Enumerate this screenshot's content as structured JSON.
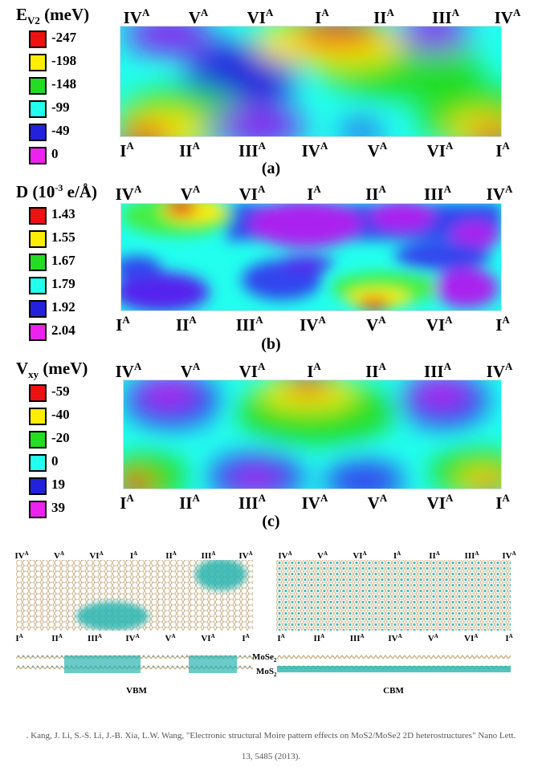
{
  "panels": [
    {
      "legend_title_main": "E",
      "legend_title_sub": "V2",
      "legend_title_rest": " (meV)",
      "legend": [
        {
          "label": "-247",
          "color": "#ee1111"
        },
        {
          "label": "-198",
          "color": "#ffee00"
        },
        {
          "label": "-148",
          "color": "#22dd22"
        },
        {
          "label": "-99",
          "color": "#22ffee"
        },
        {
          "label": "-49",
          "color": "#2222dd"
        },
        {
          "label": "0",
          "color": "#ee22ee"
        }
      ],
      "top_labels": [
        "IV",
        "V",
        "VI",
        "I",
        "II",
        "III",
        "IV"
      ],
      "bottom_labels": [
        "I",
        "II",
        "III",
        "IV",
        "V",
        "VI",
        "I"
      ],
      "label_sup": "A",
      "caption": "(a)"
    },
    {
      "legend_title_main": "D (10",
      "legend_title_sup": "-3",
      "legend_title_rest": " e/Å)",
      "legend": [
        {
          "label": "1.43",
          "color": "#ee1111"
        },
        {
          "label": "1.55",
          "color": "#ffee00"
        },
        {
          "label": "1.67",
          "color": "#22dd22"
        },
        {
          "label": "1.79",
          "color": "#22ffee"
        },
        {
          "label": "1.92",
          "color": "#2222dd"
        },
        {
          "label": "2.04",
          "color": "#ee22ee"
        }
      ],
      "top_labels": [
        "IV",
        "V",
        "VI",
        "I",
        "II",
        "III",
        "IV"
      ],
      "bottom_labels": [
        "I",
        "II",
        "III",
        "IV",
        "V",
        "VI",
        "I"
      ],
      "label_sup": "A",
      "caption": "(b)"
    },
    {
      "legend_title_main": "V",
      "legend_title_sub": "xy",
      "legend_title_rest": " (meV)",
      "legend": [
        {
          "label": "-59",
          "color": "#ee1111"
        },
        {
          "label": "-40",
          "color": "#ffee00"
        },
        {
          "label": "-20",
          "color": "#22dd22"
        },
        {
          "label": "0",
          "color": "#22ffee"
        },
        {
          "label": "19",
          "color": "#2222dd"
        },
        {
          "label": "39",
          "color": "#ee22ee"
        }
      ],
      "top_labels": [
        "IV",
        "V",
        "VI",
        "I",
        "II",
        "III",
        "IV"
      ],
      "bottom_labels": [
        "I",
        "II",
        "III",
        "IV",
        "V",
        "VI",
        "I"
      ],
      "label_sup": "A",
      "caption": "(c)"
    }
  ],
  "structures": {
    "top_labels": [
      "IV",
      "V",
      "VI",
      "I",
      "II",
      "III",
      "IV"
    ],
    "bottom_labels": [
      "I",
      "II",
      "III",
      "IV",
      "V",
      "VI",
      "I"
    ],
    "label_sup": "A",
    "layer_top_main": "MoSe",
    "layer_top_sub": "2",
    "layer_bottom_main": "MoS",
    "layer_bottom_sub": "2",
    "left_caption": "VBM",
    "right_caption": "CBM"
  },
  "citation": {
    "line1": ". Kang, J. Li, S.-S. Li, J.-B. Xia, L.W. Wang, \"Electronic structural Moire pattern effects on MoS2/MoSe2 2D heterostructures\" Nano Lett.",
    "line2": "13, 5485 (2013)."
  }
}
